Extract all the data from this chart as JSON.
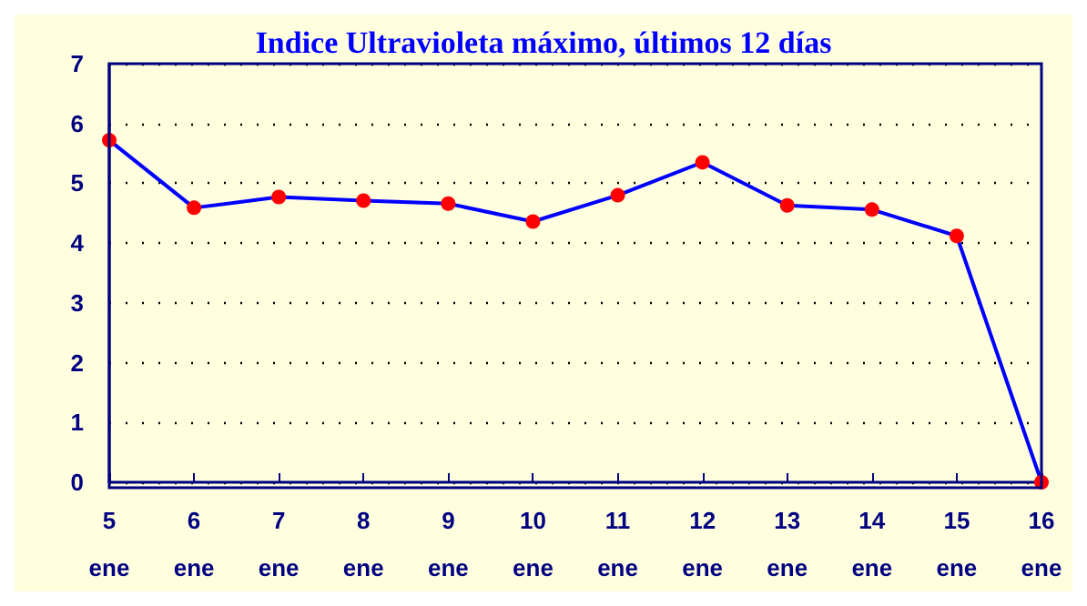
{
  "chart_data": {
    "type": "line",
    "title": "Indice Ultravioleta máximo, últimos 12 días",
    "categories": [
      "5\nene",
      "6\nene",
      "7\nene",
      "8\nene",
      "9\nene",
      "10\nene",
      "11\nene",
      "12\nene",
      "13\nene",
      "14\nene",
      "15\nene",
      "16\nene"
    ],
    "series": [
      {
        "color": "#0000ff",
        "values": [
          5.72,
          4.59,
          4.77,
          4.71,
          4.66,
          4.36,
          4.8,
          5.35,
          4.63,
          4.56,
          4.12,
          0
        ]
      }
    ],
    "ylim": [
      0,
      7
    ],
    "yticks": [
      0,
      1,
      2,
      3,
      4,
      5,
      6,
      7
    ],
    "grid": "y",
    "marker": "circle",
    "line_style": "solid"
  }
}
